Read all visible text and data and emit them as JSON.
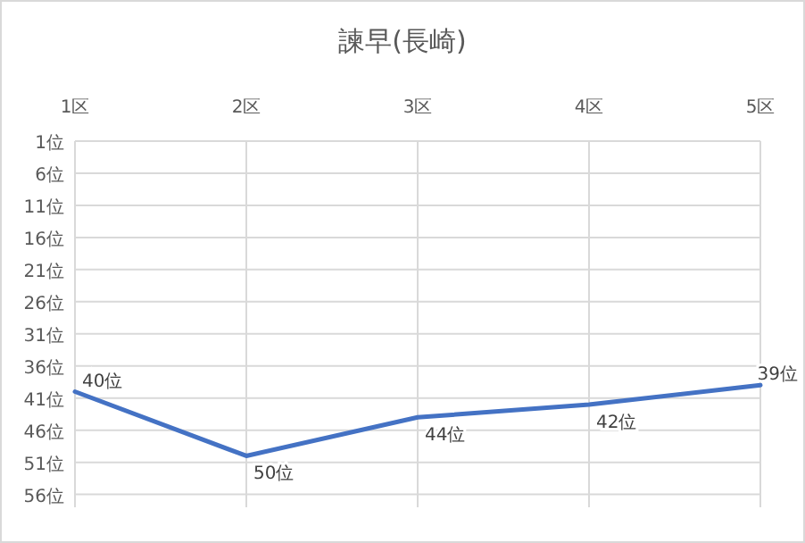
{
  "chart_data": {
    "type": "line",
    "title": "諫早(長崎)",
    "categories": [
      "1区",
      "2区",
      "3区",
      "4区",
      "5区"
    ],
    "series": [
      {
        "color": "#4472c4",
        "values": [
          40,
          50,
          44,
          42,
          39
        ],
        "value_labels": [
          "40位",
          "50位",
          "44位",
          "42位",
          "39位"
        ]
      }
    ],
    "ylim": [
      58,
      1
    ],
    "yticks": [
      {
        "value": 1,
        "label": "1位"
      },
      {
        "value": 6,
        "label": "6位"
      },
      {
        "value": 11,
        "label": "11位"
      },
      {
        "value": 16,
        "label": "16位"
      },
      {
        "value": 21,
        "label": "21位"
      },
      {
        "value": 26,
        "label": "26位"
      },
      {
        "value": 31,
        "label": "31位"
      },
      {
        "value": 36,
        "label": "36位"
      },
      {
        "value": 41,
        "label": "41位"
      },
      {
        "value": 46,
        "label": "46位"
      },
      {
        "value": 51,
        "label": "51位"
      },
      {
        "value": 56,
        "label": "56位"
      }
    ],
    "grid": true,
    "marker": "none",
    "line_style": "solid"
  }
}
